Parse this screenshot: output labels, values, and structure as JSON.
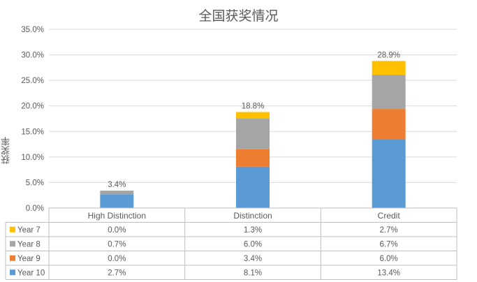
{
  "chart_data": {
    "type": "bar",
    "stacked": true,
    "title": "全国获奖情况",
    "ylabel": "获奖率",
    "xlabel": "",
    "categories": [
      "High Distinction",
      "Distinction",
      "Credit"
    ],
    "ylim": [
      0,
      35
    ],
    "yticks": [
      "0.0%",
      "5.0%",
      "10.0%",
      "15.0%",
      "20.0%",
      "25.0%",
      "30.0%",
      "35.0%"
    ],
    "series": [
      {
        "name": "Year 10",
        "color": "#5b9bd5",
        "values": [
          2.7,
          8.1,
          13.4
        ],
        "labels": [
          "2.7%",
          "8.1%",
          "13.4%"
        ]
      },
      {
        "name": "Year 9",
        "color": "#ed7d31",
        "values": [
          0.0,
          3.4,
          6.0
        ],
        "labels": [
          "0.0%",
          "3.4%",
          "6.0%"
        ]
      },
      {
        "name": "Year 8",
        "color": "#a5a5a5",
        "values": [
          0.7,
          6.0,
          6.7
        ],
        "labels": [
          "0.7%",
          "6.0%",
          "6.7%"
        ]
      },
      {
        "name": "Year 7",
        "color": "#ffc000",
        "values": [
          0.0,
          1.3,
          2.7
        ],
        "labels": [
          "0.0%",
          "1.3%",
          "2.7%"
        ]
      }
    ],
    "totals": [
      "3.4%",
      "18.8%",
      "28.9%"
    ],
    "table_row_order": [
      "Year 7",
      "Year 8",
      "Year 9",
      "Year 10"
    ],
    "grid": true
  }
}
